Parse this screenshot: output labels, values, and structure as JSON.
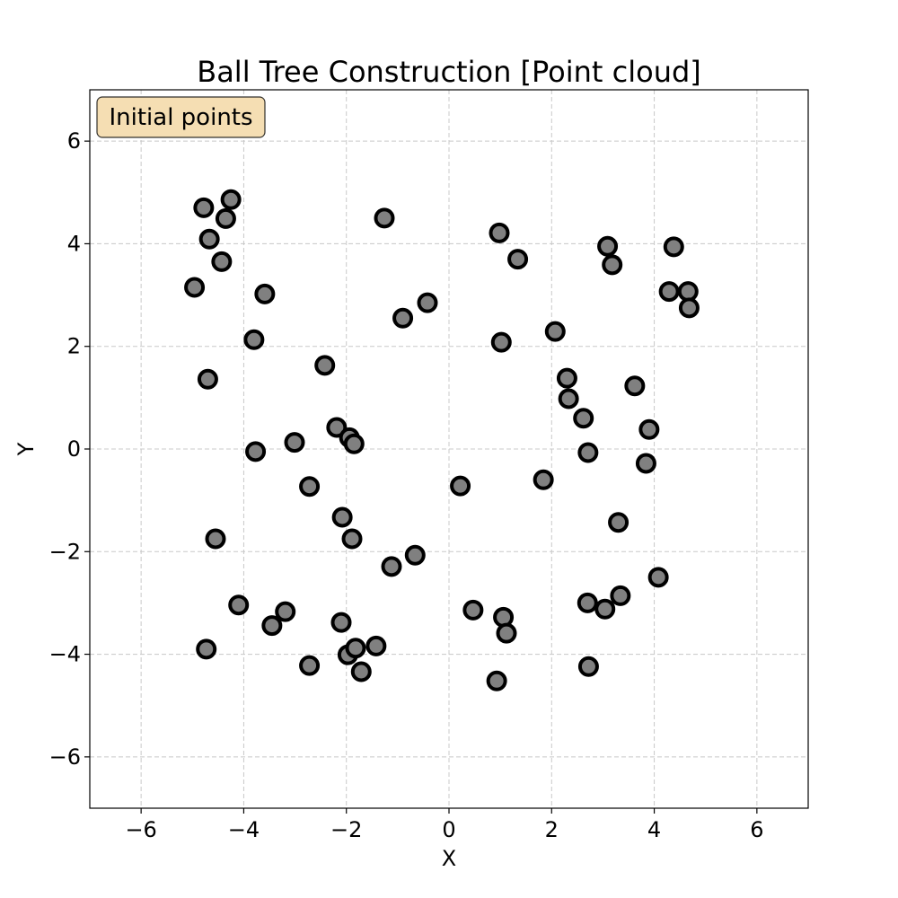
{
  "chart_data": {
    "type": "scatter",
    "title": "Ball Tree Construction [Point cloud]",
    "xlabel": "X",
    "ylabel": "Y",
    "xlim": [
      -7,
      7
    ],
    "ylim": [
      -7,
      7
    ],
    "xticks": [
      -6,
      -4,
      -2,
      0,
      2,
      4,
      6
    ],
    "yticks": [
      -6,
      -4,
      -2,
      0,
      2,
      4,
      6
    ],
    "xtick_labels": [
      "−6",
      "−4",
      "−2",
      "0",
      "2",
      "4",
      "6"
    ],
    "ytick_labels": [
      "−6",
      "−4",
      "−2",
      "0",
      "2",
      "4",
      "6"
    ],
    "grid": true,
    "annotation": "Initial points",
    "annotation_position": "top-left",
    "marker_fill": "#808080",
    "marker_edge": "#000000",
    "annotation_fill": "#f5deb3",
    "points": [
      [
        -4.78,
        4.7
      ],
      [
        -4.25,
        4.86
      ],
      [
        -4.35,
        4.49
      ],
      [
        -4.67,
        4.09
      ],
      [
        -4.43,
        3.65
      ],
      [
        -4.96,
        3.15
      ],
      [
        -3.59,
        3.02
      ],
      [
        -3.8,
        2.13
      ],
      [
        -4.7,
        1.36
      ],
      [
        -1.26,
        4.5
      ],
      [
        -0.9,
        2.55
      ],
      [
        -0.42,
        2.85
      ],
      [
        0.98,
        4.21
      ],
      [
        1.34,
        3.7
      ],
      [
        1.02,
        2.08
      ],
      [
        3.09,
        3.95
      ],
      [
        3.18,
        3.59
      ],
      [
        4.38,
        3.94
      ],
      [
        4.29,
        3.07
      ],
      [
        4.66,
        3.07
      ],
      [
        4.68,
        2.75
      ],
      [
        2.07,
        2.29
      ],
      [
        2.3,
        1.38
      ],
      [
        2.33,
        0.98
      ],
      [
        2.62,
        0.6
      ],
      [
        3.62,
        1.23
      ],
      [
        3.9,
        0.38
      ],
      [
        2.71,
        -0.07
      ],
      [
        3.84,
        -0.28
      ],
      [
        1.84,
        -0.6
      ],
      [
        3.3,
        -1.43
      ],
      [
        4.08,
        -2.5
      ],
      [
        -2.42,
        1.63
      ],
      [
        -2.19,
        0.42
      ],
      [
        -1.94,
        0.22
      ],
      [
        -1.85,
        0.1
      ],
      [
        -3.01,
        0.13
      ],
      [
        -3.77,
        -0.05
      ],
      [
        -2.72,
        -0.73
      ],
      [
        0.22,
        -0.72
      ],
      [
        -2.08,
        -1.33
      ],
      [
        -1.89,
        -1.75
      ],
      [
        -4.55,
        -1.75
      ],
      [
        -1.12,
        -2.29
      ],
      [
        -0.66,
        -2.07
      ],
      [
        -4.1,
        -3.04
      ],
      [
        -3.45,
        -3.44
      ],
      [
        -3.19,
        -3.17
      ],
      [
        -2.1,
        -3.38
      ],
      [
        -4.73,
        -3.9
      ],
      [
        -2.72,
        -4.22
      ],
      [
        -1.97,
        -4.01
      ],
      [
        -1.82,
        -3.88
      ],
      [
        -1.42,
        -3.84
      ],
      [
        -1.71,
        -4.34
      ],
      [
        0.47,
        -3.14
      ],
      [
        1.06,
        -3.28
      ],
      [
        1.12,
        -3.59
      ],
      [
        0.93,
        -4.52
      ],
      [
        2.7,
        -3.0
      ],
      [
        3.04,
        -3.12
      ],
      [
        3.34,
        -2.86
      ],
      [
        2.72,
        -4.24
      ]
    ]
  }
}
